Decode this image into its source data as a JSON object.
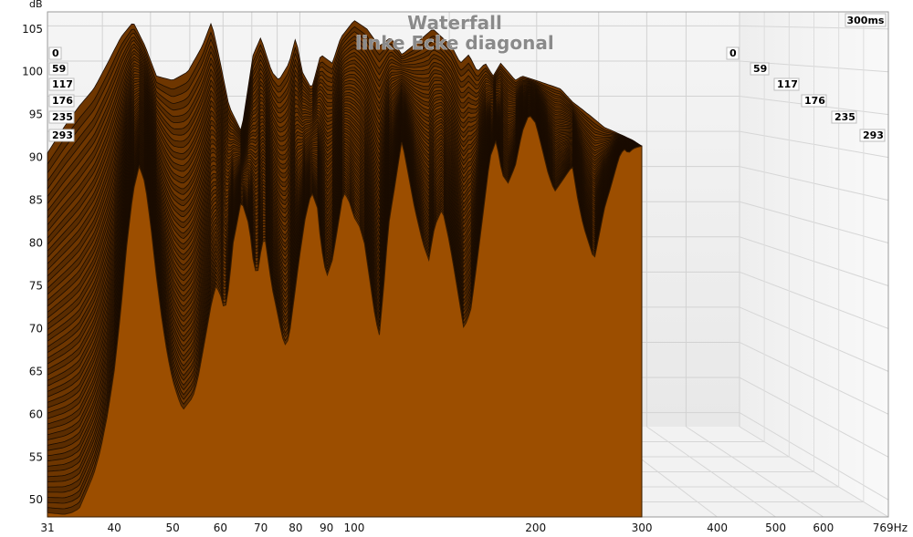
{
  "chart_data": {
    "type": "area",
    "title": "Waterfall",
    "subtitle": "linke Ecke diagonal",
    "y_unit": "dB",
    "x_unit": "Hz",
    "time_window_label": "300ms",
    "x_tick_labels": [
      "31",
      "40",
      "50",
      "60",
      "70",
      "80",
      "90",
      "100",
      "200",
      "300",
      "400",
      "500",
      "600",
      "769Hz"
    ],
    "x_ticks": [
      31,
      40,
      50,
      60,
      70,
      80,
      90,
      100,
      200,
      300,
      400,
      500,
      600,
      769
    ],
    "xlim": [
      31,
      769
    ],
    "x_scale": "log",
    "y_ticks": [
      50,
      55,
      60,
      65,
      70,
      75,
      80,
      85,
      90,
      95,
      100,
      105
    ],
    "ylim": [
      48,
      107
    ],
    "time_slices_ms": [
      "0",
      "59",
      "117",
      "176",
      "235",
      "293"
    ],
    "series": [
      {
        "name": "",
        "x": [
          31,
          33,
          35,
          37,
          39,
          41,
          43,
          45,
          47,
          50,
          53,
          56,
          58,
          60,
          62,
          65,
          68,
          70,
          73,
          75,
          78,
          80,
          82,
          85,
          88,
          92,
          95,
          100,
          105,
          110,
          115,
          120,
          125,
          130,
          135,
          140,
          145,
          150,
          155,
          160,
          165,
          170,
          175,
          180,
          185,
          190,
          200,
          210,
          220,
          230,
          240,
          250,
          260,
          270,
          280,
          290,
          300
        ],
        "values": [
          90.5,
          93.5,
          96,
          98,
          101,
          104,
          105.8,
          103,
          99.5,
          99,
          100,
          103,
          105.8,
          101,
          96,
          93,
          102,
          104,
          100,
          99,
          101,
          104,
          100,
          98,
          102,
          101,
          104,
          106,
          105,
          103,
          104,
          102,
          103,
          104,
          105,
          104,
          103,
          101,
          102,
          100,
          101,
          99.5,
          101,
          100,
          99,
          99.5,
          99,
          98.5,
          98,
          96.5,
          95.5,
          94.5,
          93.5,
          93,
          92.5,
          92,
          91.3
        ]
      },
      {
        "name": "",
        "x": [
          31,
          33,
          34,
          35,
          36,
          37,
          38,
          39,
          40,
          41,
          42,
          43,
          44,
          45,
          46,
          47,
          48,
          49,
          50,
          51,
          52,
          54,
          55,
          56,
          57,
          58,
          59,
          60,
          61,
          62,
          63,
          65,
          67,
          68,
          69,
          70,
          71,
          73,
          75,
          76,
          77,
          78,
          79,
          80,
          81,
          83,
          85,
          86,
          87,
          88,
          90,
          92,
          94,
          96,
          98,
          100,
          102,
          104,
          106,
          108,
          110,
          112,
          114,
          117,
          120,
          123,
          126,
          130,
          133,
          136,
          140,
          144,
          148,
          152,
          156,
          160,
          164,
          168,
          172,
          176,
          180,
          185,
          190,
          195,
          200,
          205,
          210,
          215,
          220,
          225,
          230,
          235,
          240,
          245,
          250,
          255,
          260,
          265,
          270,
          275,
          280,
          285,
          290,
          295,
          300
        ],
        "values": [
          48.5,
          48.3,
          48.5,
          49,
          51,
          53,
          56,
          60,
          65,
          72,
          80,
          86,
          89,
          87,
          82,
          76,
          71,
          67,
          64,
          62,
          60.5,
          62,
          64,
          67,
          70,
          73,
          75,
          74,
          72,
          75,
          80,
          85,
          82,
          78,
          76,
          79,
          81,
          75,
          71,
          69,
          68,
          69,
          72,
          75,
          78,
          83,
          86,
          85,
          84,
          80,
          76,
          78,
          82,
          86,
          85,
          83,
          82,
          80,
          76,
          72,
          69,
          75,
          82,
          87,
          92,
          88,
          84,
          80,
          78,
          82,
          84,
          80,
          75,
          70,
          72,
          78,
          84,
          90,
          92,
          88,
          87,
          89,
          93,
          95,
          94,
          91,
          88,
          86,
          87,
          88,
          89,
          85,
          82,
          80,
          78,
          81,
          84,
          86,
          88,
          90,
          91,
          90.5,
          91,
          91.2,
          91.3
        ]
      }
    ]
  }
}
